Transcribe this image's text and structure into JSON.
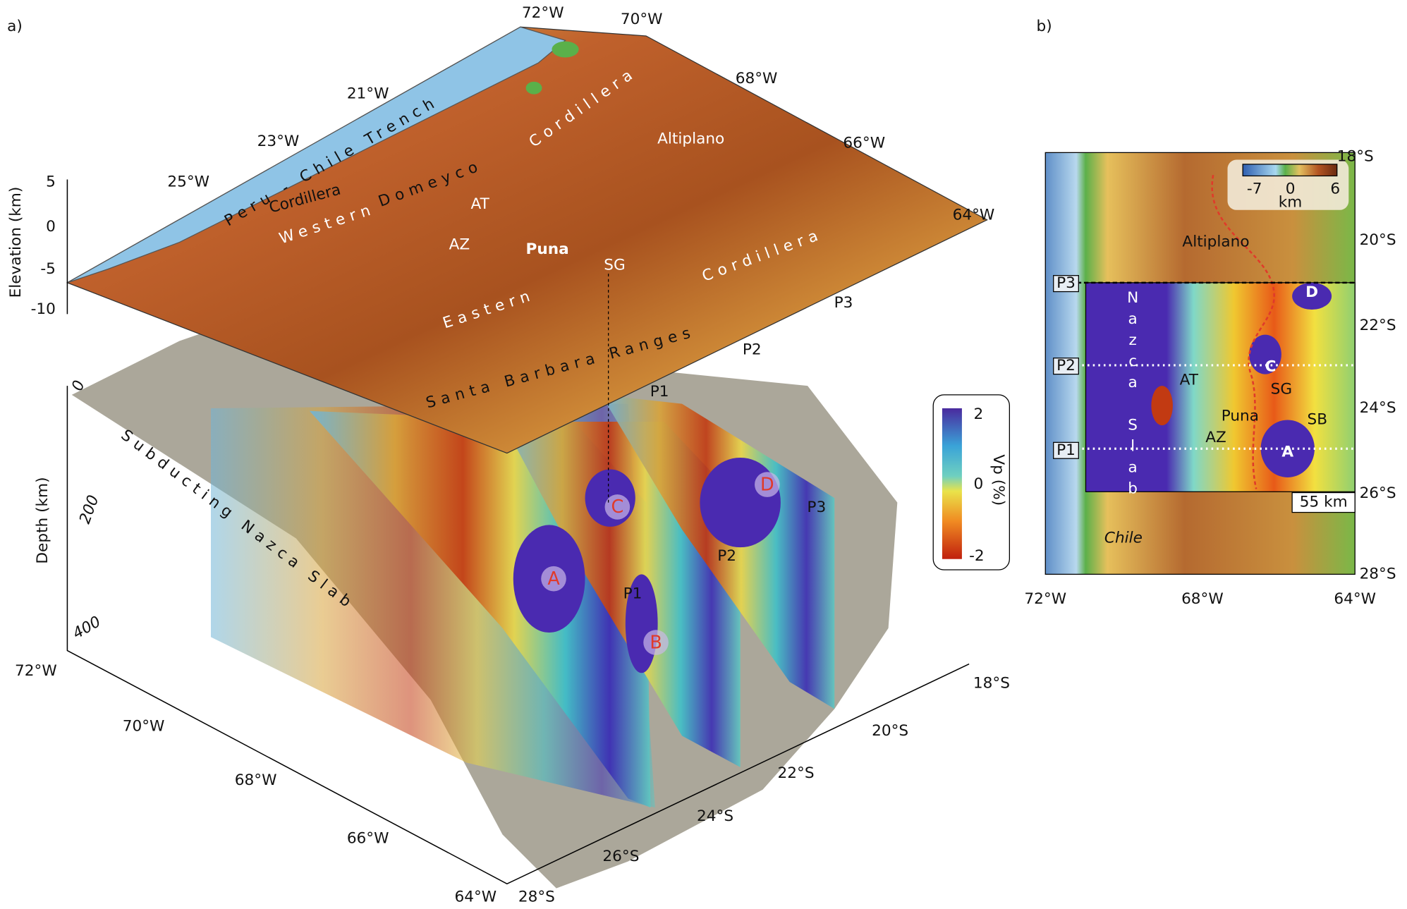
{
  "panel_a": {
    "label": "a)",
    "elevation_title": "Elevation (km)",
    "elevation_ticks": [
      "5",
      "0",
      "-5",
      "-10"
    ],
    "depth_title": "Depth (km)",
    "depth_ticks": [
      "0",
      "200",
      "400"
    ],
    "top_lon_labels": [
      "72°W",
      "70°W",
      "68°W",
      "66°W",
      "64°W"
    ],
    "side_lat_labels": [
      "21°W",
      "23°W",
      "25°W"
    ],
    "bottom_lon_labels": [
      "72°W",
      "70°W",
      "68°W",
      "66°W",
      "64°W"
    ],
    "bottom_lat_labels": [
      "28°S",
      "26°S",
      "24°S",
      "22°S",
      "20°S",
      "18°S"
    ],
    "features": [
      "Peru - Chile Trench",
      "Cordillera",
      "Domeyco",
      "Cordillera",
      "Altiplano",
      "Western",
      "AT",
      "AZ",
      "Puna",
      "SG",
      "Cordillera",
      "Eastern",
      "Santa Barbara Ranges"
    ],
    "profiles_top": [
      "P3",
      "P2",
      "P1"
    ],
    "slab": "Subducting Nazca Slab",
    "anomalies": [
      "A",
      "B",
      "C",
      "D"
    ],
    "profiles_section": [
      "P1",
      "P2",
      "P3"
    ],
    "colorbar": {
      "title": "Vp (%)",
      "ticks": [
        "2",
        "0",
        "-2"
      ]
    }
  },
  "panel_b": {
    "label": "b)",
    "lat_labels": [
      "18°S",
      "20°S",
      "22°S",
      "24°S",
      "26°S",
      "28°S"
    ],
    "lon_labels": [
      "72°W",
      "68°W",
      "64°W"
    ],
    "legend": {
      "ticks": [
        "-7",
        "0",
        "6"
      ],
      "unit": "km"
    },
    "features": [
      "Altiplano",
      "Nazca Slab",
      "AT",
      "SG",
      "SB",
      "Puna",
      "AZ",
      "Chile"
    ],
    "anomalies": [
      "A",
      "C",
      "D"
    ],
    "profiles": [
      "P1",
      "P2",
      "P3"
    ],
    "scale": "55 km"
  }
}
